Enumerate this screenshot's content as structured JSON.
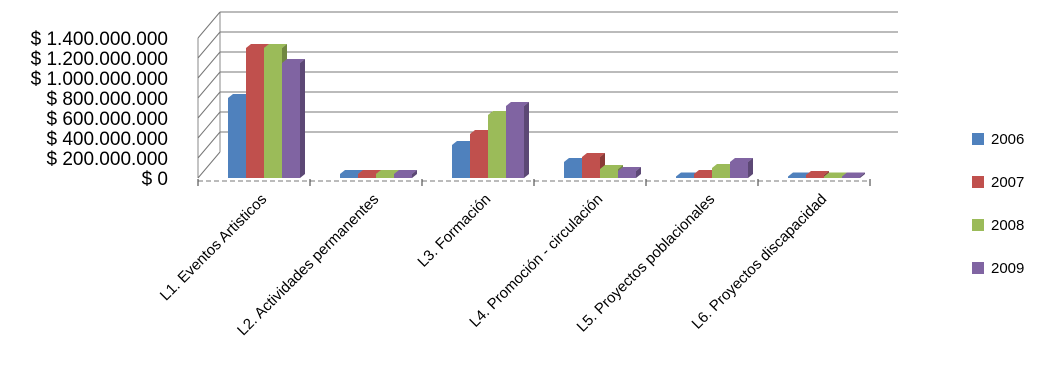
{
  "chart_data": {
    "type": "bar",
    "style": "3d-clustered-column",
    "categories": [
      "L1. Eventos Artisticos",
      "L2. Actividades permanentes",
      "L3. Formación",
      "L4. Promoción - circulación",
      "L5. Proyectos poblacionales",
      "L6. Proyectos discapacidad"
    ],
    "series": [
      {
        "name": "2006",
        "color": "#4F81BD",
        "values": [
          800000000,
          40000000,
          330000000,
          160000000,
          15000000,
          15000000
        ]
      },
      {
        "name": "2007",
        "color": "#C0504D",
        "values": [
          1300000000,
          40000000,
          440000000,
          210000000,
          40000000,
          30000000
        ]
      },
      {
        "name": "2008",
        "color": "#9BBB59",
        "values": [
          1300000000,
          40000000,
          630000000,
          90000000,
          100000000,
          15000000
        ]
      },
      {
        "name": "2009",
        "color": "#8064A2",
        "values": [
          1150000000,
          40000000,
          720000000,
          70000000,
          160000000,
          15000000
        ]
      }
    ],
    "yticks": [
      "$ 0",
      "$ 200.000.000",
      "$ 400.000.000",
      "$ 600.000.000",
      "$ 800.000.000",
      "$ 1.000.000.000",
      "$ 1.200.000.000",
      "$ 1.400.000.000"
    ],
    "ylim": [
      0,
      1400000000
    ],
    "grid": true,
    "legend_position": "right"
  }
}
